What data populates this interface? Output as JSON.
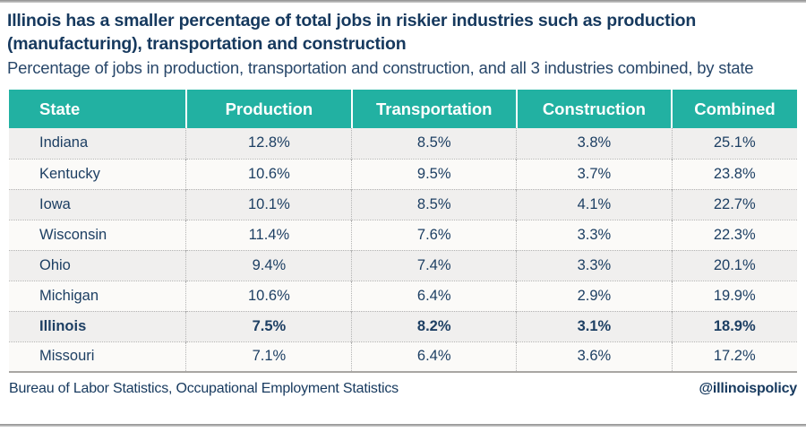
{
  "header": {
    "title": "Illinois has a smaller percentage of total jobs in riskier industries such as production (manufacturing), transportation and construction",
    "subtitle": "Percentage of jobs in production, transportation and construction, and all 3 industries combined, by state"
  },
  "chart_data": {
    "type": "table",
    "title": "Illinois has a smaller percentage of total jobs in riskier industries such as production (manufacturing), transportation and construction",
    "subtitle": "Percentage of jobs in production, transportation and construction, and all 3 industries combined, by state",
    "columns": [
      "State",
      "Production",
      "Transportation",
      "Construction",
      "Combined"
    ],
    "rows": [
      {
        "state": "Indiana",
        "values": [
          "12.8%",
          "8.5%",
          "3.8%",
          "25.1%"
        ],
        "highlight": false
      },
      {
        "state": "Kentucky",
        "values": [
          "10.6%",
          "9.5%",
          "3.7%",
          "23.8%"
        ],
        "highlight": false
      },
      {
        "state": "Iowa",
        "values": [
          "10.1%",
          "8.5%",
          "4.1%",
          "22.7%"
        ],
        "highlight": false
      },
      {
        "state": "Wisconsin",
        "values": [
          "11.4%",
          "7.6%",
          "3.3%",
          "22.3%"
        ],
        "highlight": false
      },
      {
        "state": "Ohio",
        "values": [
          "9.4%",
          "7.4%",
          "3.3%",
          "20.1%"
        ],
        "highlight": false
      },
      {
        "state": "Michigan",
        "values": [
          "10.6%",
          "6.4%",
          "2.9%",
          "19.9%"
        ],
        "highlight": false
      },
      {
        "state": "Illinois",
        "values": [
          "7.5%",
          "8.2%",
          "3.1%",
          "18.9%"
        ],
        "highlight": true
      },
      {
        "state": "Missouri",
        "values": [
          "7.1%",
          "6.4%",
          "3.6%",
          "17.2%"
        ],
        "highlight": false
      }
    ],
    "highlighted_row": "Illinois",
    "values_numeric": {
      "Indiana": [
        12.8,
        8.5,
        3.8,
        25.1
      ],
      "Kentucky": [
        10.6,
        9.5,
        3.7,
        23.8
      ],
      "Iowa": [
        10.1,
        8.5,
        4.1,
        22.7
      ],
      "Wisconsin": [
        11.4,
        7.6,
        3.3,
        22.3
      ],
      "Ohio": [
        9.4,
        7.4,
        3.3,
        20.1
      ],
      "Michigan": [
        10.6,
        6.4,
        2.9,
        19.9
      ],
      "Illinois": [
        7.5,
        8.2,
        3.1,
        18.9
      ],
      "Missouri": [
        7.1,
        6.4,
        3.6,
        17.2
      ]
    }
  },
  "footer": {
    "source": "Bureau of Labor Statistics, Occupational Employment Statistics",
    "handle": "@illinoispolicy"
  },
  "colors": {
    "header_teal": "#22b1a2",
    "title_navy": "#16395e",
    "cell_navy": "#1d3f63",
    "row_gray": "#f0efee",
    "row_white": "#fbfaf8",
    "dotted_border": "#b3b3b3"
  }
}
